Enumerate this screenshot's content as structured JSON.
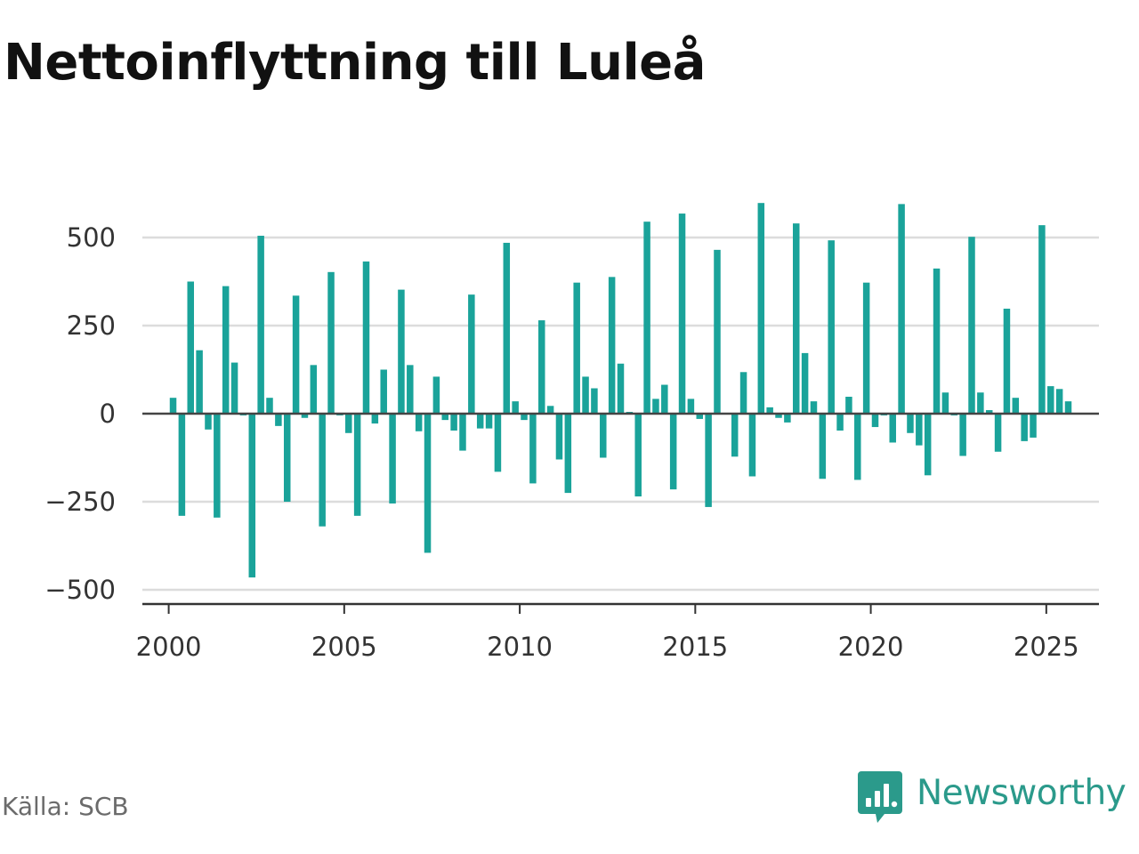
{
  "source_label": "Källa: SCB",
  "brand": {
    "name": "Newsworthy",
    "logo_icon": "newsworthy-logo-icon",
    "color": "#2b9a8b"
  },
  "chart_data": {
    "type": "bar",
    "title": "Nettoinflyttning till Luleå",
    "xlabel": "",
    "ylabel": "",
    "ylim": [
      -500,
      600
    ],
    "xlim": [
      1999.25,
      2026.5
    ],
    "yticks": [
      -500,
      -250,
      0,
      250,
      500
    ],
    "ytick_labels": [
      "−500",
      "−250",
      "0",
      "250",
      "500"
    ],
    "xticks": [
      2000,
      2005,
      2010,
      2015,
      2020,
      2025
    ],
    "xtick_labels": [
      "2000",
      "2005",
      "2010",
      "2015",
      "2020",
      "2025"
    ],
    "grid": "horizontal",
    "legend": "none",
    "bar_color": "#1aa39a",
    "frequency": "quarterly",
    "start_year": 2000,
    "values": [
      45,
      -290,
      375,
      180,
      -45,
      -295,
      362,
      145,
      -5,
      -465,
      505,
      45,
      -35,
      -250,
      335,
      -12,
      138,
      -320,
      402,
      -5,
      -55,
      -290,
      432,
      -28,
      125,
      -255,
      352,
      138,
      -50,
      -395,
      105,
      -18,
      -48,
      -105,
      338,
      -42,
      -42,
      -165,
      485,
      35,
      -18,
      -198,
      265,
      22,
      -130,
      -225,
      372,
      105,
      72,
      -125,
      388,
      142,
      5,
      -235,
      545,
      42,
      82,
      -215,
      568,
      42,
      -15,
      -265,
      465,
      -2,
      -122,
      118,
      -178,
      598,
      18,
      -12,
      -25,
      540,
      172,
      35,
      -185,
      492,
      -48,
      48,
      -188,
      372,
      -38,
      -5,
      -82,
      595,
      -55,
      -90,
      -175,
      412,
      60,
      -5,
      -120,
      502,
      60,
      10,
      -108,
      298,
      45,
      -78,
      -68,
      535,
      78,
      70,
      35
    ]
  }
}
